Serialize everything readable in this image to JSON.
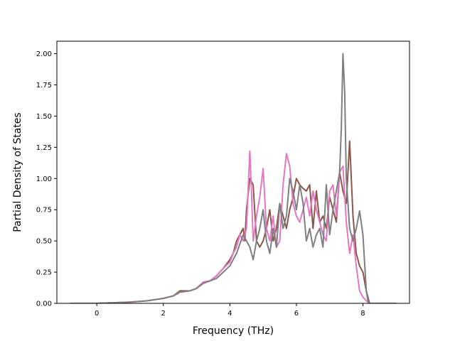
{
  "chart_data": {
    "type": "line",
    "title": "",
    "xlabel": "Frequency (THz)",
    "ylabel": "Partial Density of States",
    "xlim": [
      -1.2,
      9.4
    ],
    "ylim": [
      0,
      2.1
    ],
    "xticks": [
      0,
      2,
      4,
      6,
      8
    ],
    "yticks": [
      0.0,
      0.25,
      0.5,
      0.75,
      1.0,
      1.25,
      1.5,
      1.75,
      2.0
    ],
    "xtick_labels": [
      "0",
      "2",
      "4",
      "6",
      "8"
    ],
    "ytick_labels": [
      "0.00",
      "0.25",
      "0.50",
      "0.75",
      "1.00",
      "1.25",
      "1.50",
      "1.75",
      "2.00"
    ],
    "grid": false,
    "legend": "none",
    "series": [
      {
        "color": "#8c564b",
        "x": [
          -0.8,
          0,
          0.5,
          1,
          1.5,
          2,
          2.3,
          2.5,
          2.8,
          3,
          3.2,
          3.4,
          3.6,
          3.8,
          4,
          4.1,
          4.2,
          4.3,
          4.4,
          4.45,
          4.5,
          4.6,
          4.7,
          4.8,
          4.9,
          5,
          5.1,
          5.2,
          5.3,
          5.4,
          5.5,
          5.6,
          5.7,
          5.8,
          5.9,
          6,
          6.1,
          6.2,
          6.3,
          6.4,
          6.5,
          6.6,
          6.7,
          6.8,
          6.9,
          7,
          7.1,
          7.2,
          7.3,
          7.4,
          7.5,
          7.6,
          7.7,
          7.8,
          7.9,
          8,
          8.1,
          8.15,
          8.2,
          9
        ],
        "y": [
          0,
          0,
          0.005,
          0.01,
          0.02,
          0.04,
          0.06,
          0.1,
          0.1,
          0.12,
          0.17,
          0.18,
          0.22,
          0.28,
          0.35,
          0.4,
          0.5,
          0.55,
          0.6,
          0.5,
          0.75,
          1.0,
          0.95,
          0.5,
          0.45,
          0.5,
          0.6,
          0.75,
          0.5,
          0.6,
          0.8,
          0.7,
          0.6,
          0.75,
          0.85,
          1.0,
          0.95,
          0.92,
          0.9,
          0.95,
          0.6,
          0.9,
          0.65,
          0.7,
          0.6,
          0.85,
          0.75,
          0.65,
          1.05,
          0.9,
          0.8,
          1.3,
          0.7,
          0.4,
          0.3,
          0.25,
          0.1,
          0.05,
          0,
          0
        ]
      },
      {
        "color": "#e377c2",
        "x": [
          -0.8,
          0,
          0.5,
          1,
          1.5,
          2,
          2.3,
          2.5,
          2.8,
          3,
          3.2,
          3.4,
          3.6,
          3.8,
          4,
          4.1,
          4.2,
          4.3,
          4.4,
          4.5,
          4.6,
          4.65,
          4.7,
          4.8,
          4.9,
          5,
          5.1,
          5.2,
          5.3,
          5.4,
          5.5,
          5.6,
          5.7,
          5.8,
          5.9,
          6,
          6.1,
          6.2,
          6.3,
          6.4,
          6.5,
          6.6,
          6.7,
          6.8,
          6.9,
          7,
          7.1,
          7.2,
          7.3,
          7.4,
          7.5,
          7.6,
          7.7,
          7.8,
          7.9,
          8,
          8.1,
          8.15,
          8.2,
          9
        ],
        "y": [
          0,
          0,
          0.005,
          0.01,
          0.02,
          0.04,
          0.06,
          0.09,
          0.1,
          0.12,
          0.17,
          0.18,
          0.22,
          0.28,
          0.33,
          0.4,
          0.45,
          0.55,
          0.5,
          0.6,
          1.22,
          0.9,
          0.5,
          0.7,
          0.85,
          1.08,
          0.6,
          0.5,
          0.7,
          0.45,
          0.5,
          0.95,
          1.2,
          1.1,
          0.8,
          0.7,
          0.65,
          0.75,
          0.85,
          0.7,
          0.9,
          0.75,
          0.65,
          0.55,
          0.5,
          0.9,
          0.95,
          0.7,
          1.05,
          1.1,
          0.65,
          0.4,
          0.55,
          0.3,
          0.1,
          0.05,
          0.02,
          0.01,
          0,
          0
        ]
      },
      {
        "color": "#7f7f7f",
        "x": [
          -0.8,
          0,
          0.5,
          1,
          1.5,
          2,
          2.3,
          2.5,
          2.8,
          3,
          3.2,
          3.4,
          3.6,
          3.8,
          4,
          4.2,
          4.4,
          4.5,
          4.6,
          4.7,
          4.8,
          4.9,
          5,
          5.1,
          5.2,
          5.3,
          5.4,
          5.5,
          5.6,
          5.7,
          5.8,
          5.9,
          6,
          6.1,
          6.2,
          6.3,
          6.4,
          6.5,
          6.6,
          6.7,
          6.8,
          6.9,
          7,
          7.1,
          7.2,
          7.3,
          7.35,
          7.4,
          7.45,
          7.5,
          7.6,
          7.7,
          7.8,
          7.9,
          8,
          8.1,
          8.15,
          8.2,
          9
        ],
        "y": [
          0,
          0,
          0.005,
          0.01,
          0.02,
          0.04,
          0.06,
          0.09,
          0.1,
          0.12,
          0.16,
          0.18,
          0.2,
          0.25,
          0.3,
          0.4,
          0.55,
          0.5,
          0.45,
          0.35,
          0.5,
          0.6,
          0.75,
          0.5,
          0.4,
          0.6,
          0.45,
          0.8,
          0.6,
          0.7,
          1.0,
          0.9,
          0.75,
          0.95,
          0.8,
          0.5,
          0.6,
          0.45,
          0.55,
          0.6,
          0.45,
          0.95,
          0.55,
          0.75,
          0.9,
          1.05,
          1.4,
          2.0,
          1.7,
          1.0,
          0.6,
          0.5,
          0.6,
          0.74,
          0.55,
          0.1,
          0.02,
          0,
          0
        ]
      }
    ]
  }
}
